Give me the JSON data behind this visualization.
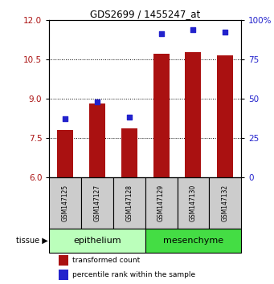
{
  "title": "GDS2699 / 1455247_at",
  "samples": [
    "GSM147125",
    "GSM147127",
    "GSM147128",
    "GSM147129",
    "GSM147130",
    "GSM147132"
  ],
  "bar_values": [
    7.8,
    8.8,
    7.85,
    10.72,
    10.78,
    10.65
  ],
  "percentile_pct": [
    37,
    48,
    38,
    91,
    94,
    92
  ],
  "ylim_left": [
    6,
    12
  ],
  "ylim_right": [
    0,
    100
  ],
  "yticks_left": [
    6,
    7.5,
    9,
    10.5,
    12
  ],
  "yticks_right": [
    0,
    25,
    50,
    75,
    100
  ],
  "bar_color": "#AA1111",
  "dot_color": "#2222CC",
  "tissue_groups": [
    {
      "label": "epithelium",
      "indices": [
        0,
        1,
        2
      ],
      "color": "#BBFFBB"
    },
    {
      "label": "mesenchyme",
      "indices": [
        3,
        4,
        5
      ],
      "color": "#44DD44"
    }
  ],
  "tissue_label": "tissue",
  "legend_bar_label": "transformed count",
  "legend_dot_label": "percentile rank within the sample",
  "sample_box_color": "#CCCCCC",
  "background_color": "#FFFFFF",
  "bar_width": 0.5
}
